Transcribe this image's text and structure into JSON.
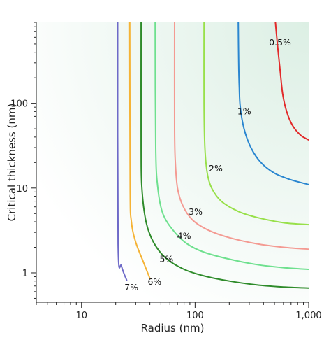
{
  "chart_data": {
    "type": "line",
    "title": "",
    "xlabel": "Radius (nm)",
    "ylabel": "Critical thickness (nm)",
    "x_scale": "log",
    "y_scale": "log",
    "xlim": [
      4,
      1000
    ],
    "ylim": [
      0.45,
      900
    ],
    "x_ticks": [
      {
        "value": 10,
        "label": "10"
      },
      {
        "value": 100,
        "label": "100"
      },
      {
        "value": 1000,
        "label": "1,000"
      }
    ],
    "y_ticks": [
      {
        "value": 1,
        "label": "1"
      },
      {
        "value": 10,
        "label": "10"
      },
      {
        "value": 100,
        "label": "100"
      }
    ],
    "grid": false,
    "legend": "none",
    "background_gradient": [
      "#ffffff",
      "#dcefe4"
    ],
    "series": [
      {
        "name": "7%",
        "color": "#6e6ac8",
        "label_at": [
          27.5,
          0.67
        ],
        "points": [
          [
            25.0,
            0.82
          ],
          [
            22.5,
            1.2
          ],
          [
            21.0,
            2.2
          ],
          [
            20.8,
            900
          ]
        ]
      },
      {
        "name": "6%",
        "color": "#f5b335",
        "label_at": [
          44,
          0.78
        ],
        "points": [
          [
            40.0,
            0.86
          ],
          [
            35.0,
            1.35
          ],
          [
            30.0,
            2.3
          ],
          [
            27.5,
            4.0
          ],
          [
            26.8,
            10
          ],
          [
            26.6,
            900
          ]
        ]
      },
      {
        "name": "5%",
        "color": "#2e8b2a",
        "label_at": [
          56,
          1.45
        ],
        "points": [
          [
            1000,
            0.66
          ],
          [
            600,
            0.68
          ],
          [
            350,
            0.72
          ],
          [
            200,
            0.8
          ],
          [
            120,
            0.92
          ],
          [
            80,
            1.1
          ],
          [
            55,
            1.5
          ],
          [
            43,
            2.3
          ],
          [
            37,
            4.0
          ],
          [
            34,
            10
          ],
          [
            33.5,
            30
          ],
          [
            33.5,
            900
          ]
        ]
      },
      {
        "name": "4%",
        "color": "#6ee08e",
        "label_at": [
          80,
          2.7
        ],
        "points": [
          [
            1000,
            1.1
          ],
          [
            600,
            1.15
          ],
          [
            350,
            1.25
          ],
          [
            200,
            1.45
          ],
          [
            120,
            1.75
          ],
          [
            85,
            2.2
          ],
          [
            65,
            3.1
          ],
          [
            52,
            5.0
          ],
          [
            47,
            10
          ],
          [
            45,
            30
          ],
          [
            44.5,
            900
          ]
        ]
      },
      {
        "name": "3%",
        "color": "#f49a92",
        "label_at": [
          101,
          5.2
        ],
        "points": [
          [
            1000,
            1.9
          ],
          [
            600,
            2.0
          ],
          [
            350,
            2.2
          ],
          [
            200,
            2.6
          ],
          [
            130,
            3.2
          ],
          [
            95,
            4.2
          ],
          [
            78,
            6.2
          ],
          [
            70,
            10
          ],
          [
            67,
            20
          ],
          [
            66,
            50
          ],
          [
            66,
            900
          ]
        ]
      },
      {
        "name": "2%",
        "color": "#98e04a",
        "label_at": [
          152,
          17
        ],
        "points": [
          [
            1000,
            3.7
          ],
          [
            600,
            3.9
          ],
          [
            350,
            4.5
          ],
          [
            240,
            5.3
          ],
          [
            170,
            7.0
          ],
          [
            140,
            10
          ],
          [
            128,
            15
          ],
          [
            122,
            30
          ],
          [
            120,
            100
          ],
          [
            120,
            900
          ]
        ]
      },
      {
        "name": "1%",
        "color": "#2a86d0",
        "label_at": [
          271,
          80
        ],
        "points": [
          [
            1000,
            11
          ],
          [
            700,
            12.5
          ],
          [
            500,
            15
          ],
          [
            380,
            20
          ],
          [
            310,
            30
          ],
          [
            270,
            50
          ],
          [
            250,
            90
          ],
          [
            245,
            150
          ],
          [
            242,
            300
          ],
          [
            240,
            900
          ]
        ]
      },
      {
        "name": "0.5%",
        "color": "#e22a2a",
        "label_at": [
          560,
          520
        ],
        "points": [
          [
            1000,
            37
          ],
          [
            850,
            42
          ],
          [
            720,
            55
          ],
          [
            640,
            80
          ],
          [
            590,
            130
          ],
          [
            560,
            250
          ],
          [
            530,
            500
          ],
          [
            510,
            900
          ]
        ]
      }
    ]
  }
}
